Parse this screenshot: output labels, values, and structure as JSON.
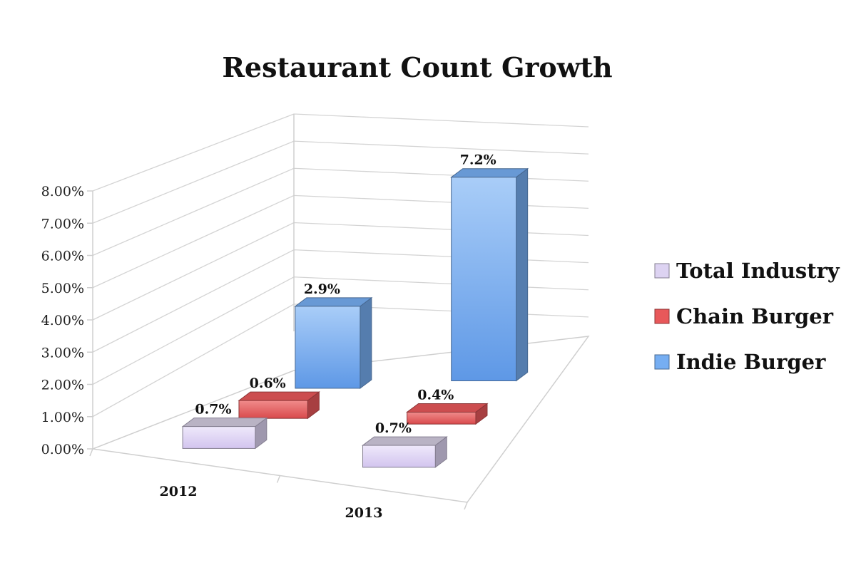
{
  "chart_data": {
    "type": "bar",
    "title": "Restaurant Count Growth",
    "categories": [
      "2012",
      "2013"
    ],
    "series": [
      {
        "name": "Total Industry",
        "values": [
          0.7,
          0.7
        ],
        "labels": [
          "0.7%",
          "0.7%"
        ],
        "color": "#ddd3f2"
      },
      {
        "name": "Chain Burger",
        "values": [
          0.6,
          0.4
        ],
        "labels": [
          "0.6%",
          "0.4%"
        ],
        "color": "#e8585a"
      },
      {
        "name": "Indie Burger",
        "values": [
          2.9,
          7.2
        ],
        "labels": [
          "2.9%",
          "7.2%"
        ],
        "color": "#76aef2"
      }
    ],
    "ylim": [
      0,
      8
    ],
    "yticks": [
      "0.00%",
      "1.00%",
      "2.00%",
      "3.00%",
      "4.00%",
      "5.00%",
      "6.00%",
      "7.00%",
      "8.00%"
    ],
    "grid": true,
    "legend_position": "right",
    "style": "3d"
  }
}
